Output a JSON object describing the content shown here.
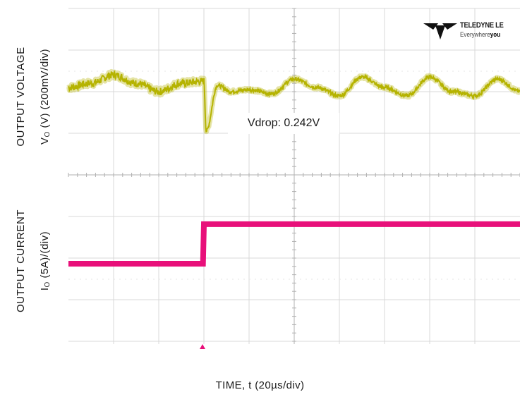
{
  "chart_data": {
    "type": "line",
    "title": "",
    "xlabel": "TIME, t (20µs/div)",
    "x_divisions": 10,
    "panels": [
      {
        "ylabel_line1": "OUTPUT VOLTAGE",
        "ylabel_line2_prefix": "V",
        "ylabel_line2_sub": "O",
        "ylabel_line2_suffix": " (V) (200mV/div)",
        "series": [
          {
            "color": "#b5b300",
            "x_div": [
              0,
              0.5,
              1.0,
              1.5,
              2.0,
              2.5,
              3.0,
              3.05,
              3.3,
              3.6,
              4.0,
              4.5,
              5.0,
              5.5,
              6.0,
              6.5,
              7.0,
              7.5,
              8.0,
              8.5,
              9.0,
              9.5,
              10.0
            ],
            "y_div": [
              0.0,
              0.1,
              0.3,
              0.1,
              -0.1,
              0.1,
              0.15,
              -1.05,
              0.05,
              -0.1,
              -0.05,
              -0.15,
              0.2,
              0.0,
              -0.2,
              0.25,
              0.0,
              -0.2,
              0.25,
              -0.1,
              -0.2,
              0.2,
              -0.1
            ]
          }
        ]
      },
      {
        "ylabel_line1": "OUTPUT CURRENT",
        "ylabel_line2_prefix": "I",
        "ylabel_line2_sub": "O",
        "ylabel_line2_suffix": " (5A)/(div)",
        "series": [
          {
            "color": "#e8107a",
            "x_div": [
              0,
              2.98,
              3.0,
              10.0
            ],
            "y_div": [
              0.0,
              0.0,
              0.95,
              0.95
            ]
          }
        ]
      }
    ],
    "annotations": [
      {
        "text": "Vdrop: 0.242V"
      }
    ]
  },
  "logo": {
    "brand": "TELEDYNE LE",
    "tagline_light": "Everywhere",
    "tagline_bold": "you"
  }
}
